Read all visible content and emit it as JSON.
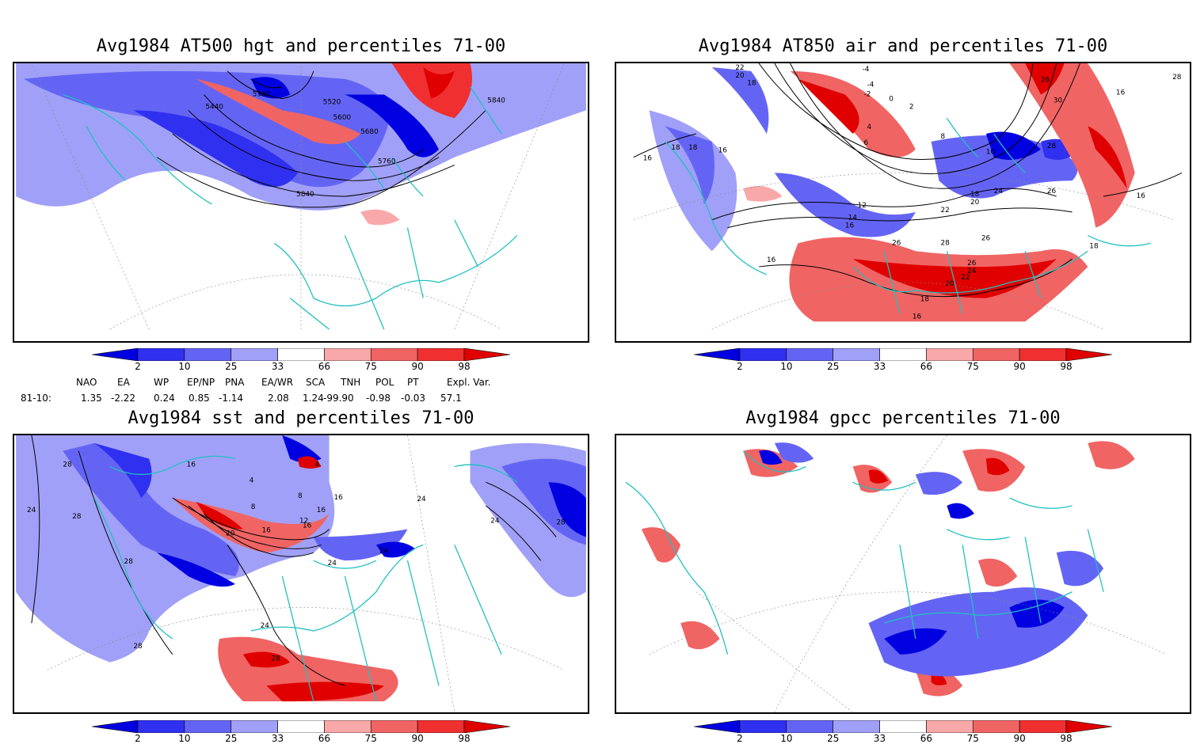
{
  "panels": [
    {
      "title": "Avg1984 AT500 hgt and percentiles 71-00",
      "contour_labels": [
        "5360",
        "5440",
        "5520",
        "5600",
        "5680",
        "5760",
        "5840",
        "5840"
      ]
    },
    {
      "title": "Avg1984 AT850 air and percentiles 71-00",
      "contour_labels": [
        "22",
        "20",
        "18",
        "-4",
        "-4",
        "-2",
        "0",
        "2",
        "4",
        "6",
        "8",
        "10",
        "12",
        "14",
        "16",
        "18",
        "18",
        "16",
        "16",
        "18",
        "20",
        "22",
        "24",
        "26",
        "28",
        "28",
        "26",
        "30",
        "26",
        "26",
        "16",
        "16",
        "18",
        "28",
        "26",
        "24",
        "22",
        "20",
        "18",
        "16",
        "16"
      ]
    },
    {
      "title": "Avg1984 sst and percentiles 71-00",
      "contour_labels": [
        "28",
        "24",
        "28",
        "16",
        "4",
        "4",
        "8",
        "12",
        "8",
        "16",
        "16",
        "20",
        "16",
        "16",
        "24",
        "24",
        "24",
        "28",
        "28",
        "24",
        "28",
        "24",
        "28"
      ]
    },
    {
      "title": "Avg1984 gpcc percentiles 71-00",
      "contour_labels": []
    }
  ],
  "colorbar": {
    "labels": [
      "2",
      "10",
      "25",
      "33",
      "66",
      "75",
      "90",
      "98"
    ],
    "colors": [
      "#0000e0",
      "#3030f0",
      "#6464f4",
      "#a0a0f8",
      "#ffffff",
      "#f8a8a8",
      "#f06464",
      "#f03030",
      "#e00000"
    ]
  },
  "indices": {
    "headers": [
      "NAO",
      "EA",
      "WP",
      "EP/NP",
      "PNA",
      "EA/WR",
      "SCA",
      "TNH",
      "POL",
      "PT",
      "Expl. Var."
    ],
    "row_label": "81-10:",
    "values": [
      "1.35",
      "-2.22",
      "0.24",
      "0.85",
      "-1.14",
      "2.08",
      "1.24",
      "-99.90",
      "-0.98",
      "-0.03",
      "57.1"
    ]
  },
  "colors": {
    "coast": "#20c0c0",
    "contour": "#000000",
    "grid": "#888888"
  }
}
